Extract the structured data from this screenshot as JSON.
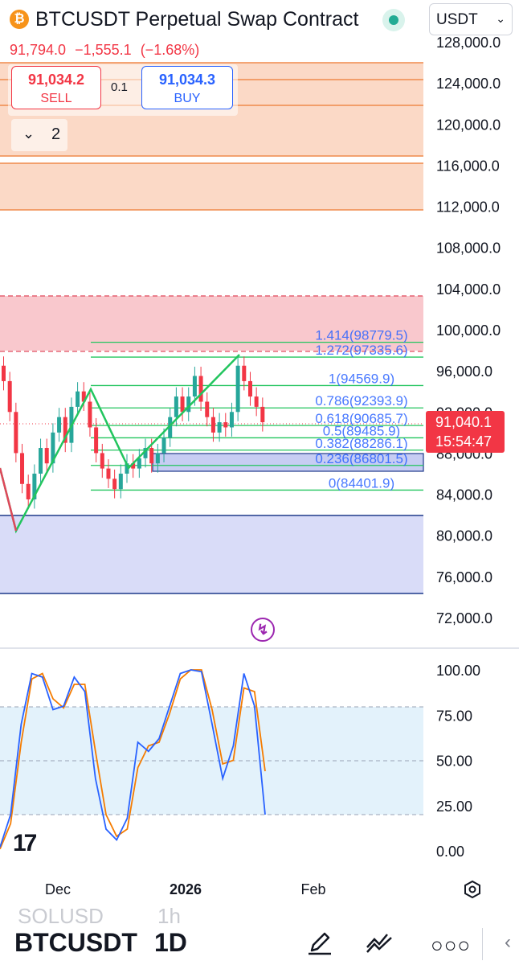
{
  "header": {
    "title": "BTCUSDT Perpetual Swap Contract",
    "currency": "USDT",
    "last": "91,794.0",
    "change": "−1,555.1",
    "change_pct": "(−1.68%)",
    "sell_price": "91,034.2",
    "sell_label": "SELL",
    "spread": "0.1",
    "buy_price": "91,034.3",
    "buy_label": "BUY",
    "indicators_count": "2"
  },
  "price_axis": {
    "labels": [
      "128,000.0",
      "124,000.0",
      "120,000.0",
      "116,000.0",
      "112,000.0",
      "108,000.0",
      "104,000.0",
      "100,000.0",
      "96,000.0",
      "92,000.0",
      "88,000.0",
      "84,000.0",
      "80,000.0",
      "76,000.0",
      "72,000.0"
    ],
    "current_price": "91,040.1",
    "countdown": "15:54:47"
  },
  "fib_levels": [
    {
      "ratio": "1.414",
      "price": "98779.5"
    },
    {
      "ratio": "1.272",
      "price": "97335.6"
    },
    {
      "ratio": "1",
      "price": "94569.9"
    },
    {
      "ratio": "0.786",
      "price": "92393.9"
    },
    {
      "ratio": "0.618",
      "price": "90685.7"
    },
    {
      "ratio": "0.5",
      "price": "89485.9"
    },
    {
      "ratio": "0.382",
      "price": "88286.1"
    },
    {
      "ratio": "0.236",
      "price": "86801.5"
    },
    {
      "ratio": "0",
      "price": "84401.9"
    }
  ],
  "oscillator": {
    "labels": [
      "100.00",
      "75.00",
      "50.00",
      "25.00",
      "0.00"
    ],
    "k_values": [
      2,
      20,
      70,
      98,
      96,
      78,
      80,
      96,
      88,
      40,
      12,
      6,
      18,
      60,
      55,
      62,
      80,
      98,
      100,
      99,
      70,
      40,
      58,
      98,
      80,
      20
    ],
    "d_values": [
      1,
      15,
      60,
      95,
      98,
      84,
      79,
      92,
      92,
      55,
      20,
      8,
      12,
      46,
      58,
      60,
      76,
      95,
      100,
      100,
      78,
      48,
      50,
      90,
      88,
      44
    ]
  },
  "time_axis": [
    "Dec",
    "2026",
    "Feb"
  ],
  "bottom_bar": {
    "prev_symbol": "SOLUSD",
    "prev_interval": "1h",
    "symbol": "BTCUSDT",
    "interval": "1D"
  },
  "colors": {
    "up": "#26a69a",
    "down": "#f23645",
    "fib": "#22c55e",
    "buy": "#2962ff",
    "zone_orange": "#fbd9c6",
    "zone_red": "#f9c8cd",
    "zone_blue": "#d9dcf8"
  }
}
